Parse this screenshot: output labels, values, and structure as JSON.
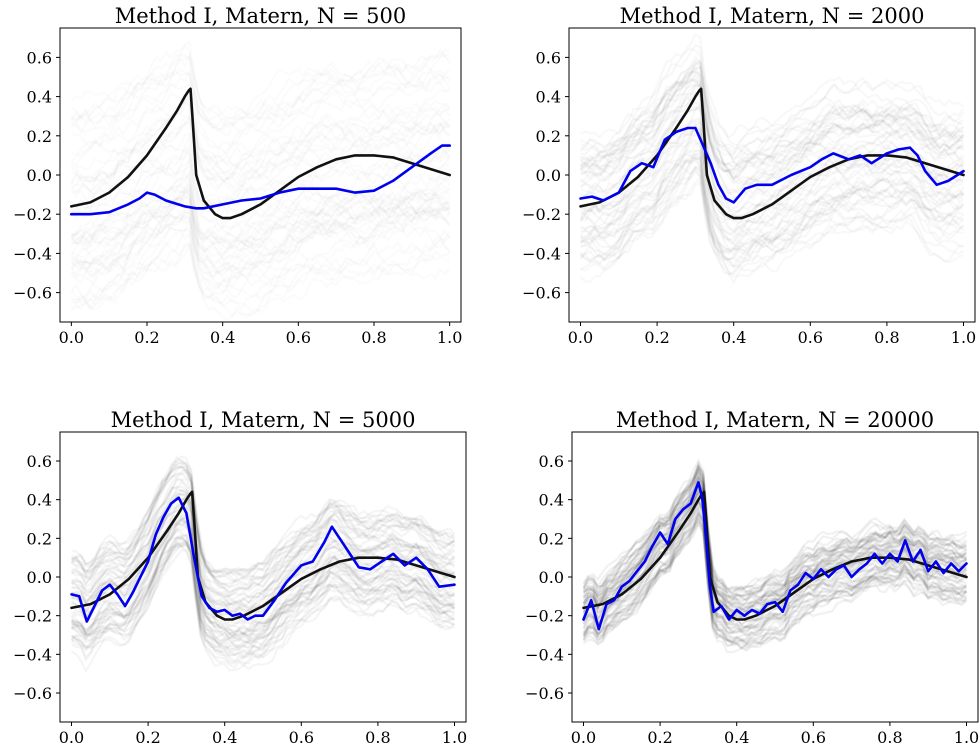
{
  "figure": {
    "background": "#ffffff"
  },
  "chart_data": [
    {
      "type": "line",
      "title": "Method I, Matern, N = 500",
      "xlabel": "",
      "ylabel": "",
      "xlim": [
        -0.03,
        1.03
      ],
      "ylim": [
        -0.75,
        0.75
      ],
      "xticks": [
        "0.0",
        "0.2",
        "0.4",
        "0.6",
        "0.8",
        "1.0"
      ],
      "yticks": [
        "0.6",
        "0.4",
        "0.2",
        "0.0",
        "−0.2",
        "−0.4",
        "−0.6"
      ],
      "grid": false,
      "legend": false,
      "band": {
        "color": "#000000",
        "spread": 0.55,
        "opacity_scale": 0.18,
        "noise": 0.1
      },
      "series": [
        {
          "color": "#111111",
          "x": [
            0.0,
            0.05,
            0.1,
            0.15,
            0.2,
            0.25,
            0.28,
            0.3,
            0.31,
            0.315,
            0.32,
            0.33,
            0.35,
            0.38,
            0.4,
            0.42,
            0.45,
            0.5,
            0.55,
            0.6,
            0.65,
            0.7,
            0.75,
            0.8,
            0.85,
            0.9,
            0.95,
            1.0
          ],
          "y": [
            -0.16,
            -0.14,
            -0.09,
            -0.01,
            0.1,
            0.24,
            0.33,
            0.4,
            0.43,
            0.44,
            0.3,
            0.0,
            -0.13,
            -0.2,
            -0.22,
            -0.22,
            -0.2,
            -0.15,
            -0.08,
            -0.01,
            0.04,
            0.08,
            0.1,
            0.1,
            0.09,
            0.06,
            0.03,
            0.0
          ]
        },
        {
          "color": "#0000ee",
          "x": [
            0.0,
            0.05,
            0.1,
            0.15,
            0.18,
            0.2,
            0.22,
            0.25,
            0.3,
            0.33,
            0.35,
            0.4,
            0.45,
            0.5,
            0.55,
            0.6,
            0.65,
            0.7,
            0.75,
            0.8,
            0.85,
            0.9,
            0.95,
            0.98,
            1.0
          ],
          "y": [
            -0.2,
            -0.2,
            -0.19,
            -0.15,
            -0.12,
            -0.09,
            -0.1,
            -0.13,
            -0.16,
            -0.17,
            -0.17,
            -0.15,
            -0.13,
            -0.12,
            -0.09,
            -0.07,
            -0.07,
            -0.07,
            -0.09,
            -0.08,
            -0.03,
            0.04,
            0.11,
            0.15,
            0.15
          ]
        }
      ]
    },
    {
      "type": "line",
      "title": "Method I, Matern, N = 2000",
      "xlabel": "",
      "ylabel": "",
      "xlim": [
        -0.03,
        1.03
      ],
      "ylim": [
        -0.75,
        0.75
      ],
      "xticks": [
        "0.0",
        "0.2",
        "0.4",
        "0.6",
        "0.8",
        "1.0"
      ],
      "yticks": [
        "0.6",
        "0.4",
        "0.2",
        "0.0",
        "−0.2",
        "−0.4",
        "−0.6"
      ],
      "grid": false,
      "legend": false,
      "band": {
        "color": "#000000",
        "spread": 0.38,
        "opacity_scale": 0.32,
        "noise": 0.08
      },
      "series": [
        {
          "color": "#111111",
          "x": [
            0.0,
            0.05,
            0.1,
            0.15,
            0.2,
            0.25,
            0.28,
            0.3,
            0.31,
            0.315,
            0.32,
            0.33,
            0.35,
            0.38,
            0.4,
            0.42,
            0.45,
            0.5,
            0.55,
            0.6,
            0.65,
            0.7,
            0.75,
            0.8,
            0.85,
            0.9,
            0.95,
            1.0
          ],
          "y": [
            -0.16,
            -0.14,
            -0.09,
            -0.01,
            0.1,
            0.24,
            0.33,
            0.4,
            0.43,
            0.44,
            0.3,
            0.0,
            -0.13,
            -0.2,
            -0.22,
            -0.22,
            -0.2,
            -0.15,
            -0.08,
            -0.01,
            0.04,
            0.08,
            0.1,
            0.1,
            0.09,
            0.06,
            0.03,
            0.0
          ]
        },
        {
          "color": "#0000ee",
          "x": [
            0.0,
            0.03,
            0.06,
            0.1,
            0.13,
            0.16,
            0.19,
            0.22,
            0.25,
            0.28,
            0.3,
            0.32,
            0.34,
            0.36,
            0.38,
            0.4,
            0.43,
            0.46,
            0.5,
            0.55,
            0.6,
            0.63,
            0.66,
            0.7,
            0.73,
            0.76,
            0.8,
            0.83,
            0.86,
            0.88,
            0.9,
            0.93,
            0.96,
            1.0
          ],
          "y": [
            -0.12,
            -0.11,
            -0.13,
            -0.09,
            0.02,
            0.06,
            0.04,
            0.18,
            0.22,
            0.24,
            0.24,
            0.15,
            0.06,
            -0.05,
            -0.12,
            -0.14,
            -0.07,
            -0.05,
            -0.05,
            0.0,
            0.04,
            0.08,
            0.11,
            0.08,
            0.1,
            0.06,
            0.11,
            0.13,
            0.14,
            0.1,
            0.02,
            -0.05,
            -0.03,
            0.02
          ]
        }
      ]
    },
    {
      "type": "line",
      "title": "Method I, Matern, N = 5000",
      "xlabel": "",
      "ylabel": "",
      "xlim": [
        -0.03,
        1.03
      ],
      "ylim": [
        -0.75,
        0.75
      ],
      "xticks": [
        "0.0",
        "0.2",
        "0.4",
        "0.6",
        "0.8",
        "1.0"
      ],
      "yticks": [
        "0.6",
        "0.4",
        "0.2",
        "0.0",
        "−0.2",
        "−0.4",
        "−0.6"
      ],
      "grid": false,
      "legend": false,
      "band": {
        "color": "#000000",
        "spread": 0.25,
        "opacity_scale": 0.45,
        "noise": 0.06
      },
      "series": [
        {
          "color": "#111111",
          "x": [
            0.0,
            0.05,
            0.1,
            0.15,
            0.2,
            0.25,
            0.28,
            0.3,
            0.31,
            0.315,
            0.32,
            0.33,
            0.35,
            0.38,
            0.4,
            0.42,
            0.45,
            0.5,
            0.55,
            0.6,
            0.65,
            0.7,
            0.75,
            0.8,
            0.85,
            0.9,
            0.95,
            1.0
          ],
          "y": [
            -0.16,
            -0.14,
            -0.09,
            -0.01,
            0.1,
            0.24,
            0.33,
            0.4,
            0.43,
            0.44,
            0.3,
            0.0,
            -0.13,
            -0.2,
            -0.22,
            -0.22,
            -0.2,
            -0.15,
            -0.08,
            -0.01,
            0.04,
            0.08,
            0.1,
            0.1,
            0.09,
            0.06,
            0.03,
            0.0
          ]
        },
        {
          "color": "#0000ee",
          "x": [
            0.0,
            0.02,
            0.04,
            0.06,
            0.08,
            0.1,
            0.12,
            0.14,
            0.16,
            0.18,
            0.2,
            0.22,
            0.24,
            0.26,
            0.28,
            0.3,
            0.32,
            0.34,
            0.36,
            0.38,
            0.4,
            0.42,
            0.44,
            0.46,
            0.48,
            0.5,
            0.53,
            0.56,
            0.6,
            0.63,
            0.66,
            0.68,
            0.7,
            0.72,
            0.75,
            0.78,
            0.81,
            0.84,
            0.87,
            0.9,
            0.93,
            0.96,
            1.0
          ],
          "y": [
            -0.09,
            -0.1,
            -0.23,
            -0.15,
            -0.07,
            -0.04,
            -0.09,
            -0.15,
            -0.08,
            0.0,
            0.08,
            0.22,
            0.31,
            0.38,
            0.41,
            0.33,
            0.1,
            -0.1,
            -0.16,
            -0.18,
            -0.17,
            -0.2,
            -0.19,
            -0.22,
            -0.2,
            -0.2,
            -0.12,
            -0.03,
            0.06,
            0.08,
            0.18,
            0.26,
            0.2,
            0.14,
            0.05,
            0.04,
            0.08,
            0.12,
            0.06,
            0.1,
            0.04,
            -0.05,
            -0.04
          ]
        }
      ]
    },
    {
      "type": "line",
      "title": "Method I, Matern, N = 20000",
      "xlabel": "",
      "ylabel": "",
      "xlim": [
        -0.03,
        1.03
      ],
      "ylim": [
        -0.75,
        0.75
      ],
      "xticks": [
        "0.0",
        "0.2",
        "0.4",
        "0.6",
        "0.8",
        "1.0"
      ],
      "yticks": [
        "0.6",
        "0.4",
        "0.2",
        "0.0",
        "−0.2",
        "−0.4",
        "−0.6"
      ],
      "grid": false,
      "legend": false,
      "band": {
        "color": "#000000",
        "spread": 0.15,
        "opacity_scale": 0.6,
        "noise": 0.05
      },
      "series": [
        {
          "color": "#111111",
          "x": [
            0.0,
            0.05,
            0.1,
            0.15,
            0.2,
            0.25,
            0.28,
            0.3,
            0.31,
            0.315,
            0.32,
            0.33,
            0.35,
            0.38,
            0.4,
            0.42,
            0.45,
            0.5,
            0.55,
            0.6,
            0.65,
            0.7,
            0.75,
            0.8,
            0.85,
            0.9,
            0.95,
            1.0
          ],
          "y": [
            -0.16,
            -0.14,
            -0.09,
            -0.01,
            0.1,
            0.24,
            0.33,
            0.4,
            0.43,
            0.44,
            0.3,
            0.0,
            -0.13,
            -0.2,
            -0.22,
            -0.22,
            -0.2,
            -0.15,
            -0.08,
            -0.01,
            0.04,
            0.08,
            0.1,
            0.1,
            0.09,
            0.06,
            0.03,
            0.0
          ]
        },
        {
          "color": "#0000ee",
          "x": [
            0.0,
            0.02,
            0.04,
            0.06,
            0.08,
            0.1,
            0.12,
            0.14,
            0.16,
            0.18,
            0.2,
            0.22,
            0.24,
            0.26,
            0.28,
            0.3,
            0.31,
            0.32,
            0.33,
            0.34,
            0.36,
            0.38,
            0.4,
            0.42,
            0.44,
            0.46,
            0.48,
            0.5,
            0.52,
            0.54,
            0.56,
            0.58,
            0.6,
            0.62,
            0.64,
            0.66,
            0.68,
            0.7,
            0.72,
            0.74,
            0.76,
            0.78,
            0.8,
            0.82,
            0.84,
            0.86,
            0.88,
            0.9,
            0.92,
            0.94,
            0.96,
            0.98,
            1.0
          ],
          "y": [
            -0.22,
            -0.12,
            -0.27,
            -0.14,
            -0.12,
            -0.05,
            -0.02,
            0.03,
            0.08,
            0.16,
            0.23,
            0.17,
            0.3,
            0.35,
            0.38,
            0.49,
            0.41,
            0.2,
            -0.05,
            -0.18,
            -0.15,
            -0.22,
            -0.17,
            -0.2,
            -0.17,
            -0.19,
            -0.14,
            -0.13,
            -0.18,
            -0.07,
            -0.04,
            0.02,
            -0.01,
            0.04,
            0.0,
            0.04,
            0.06,
            0.0,
            0.04,
            0.07,
            0.12,
            0.07,
            0.12,
            0.08,
            0.19,
            0.08,
            0.14,
            0.03,
            0.08,
            0.02,
            0.07,
            0.03,
            0.07
          ]
        }
      ]
    }
  ]
}
